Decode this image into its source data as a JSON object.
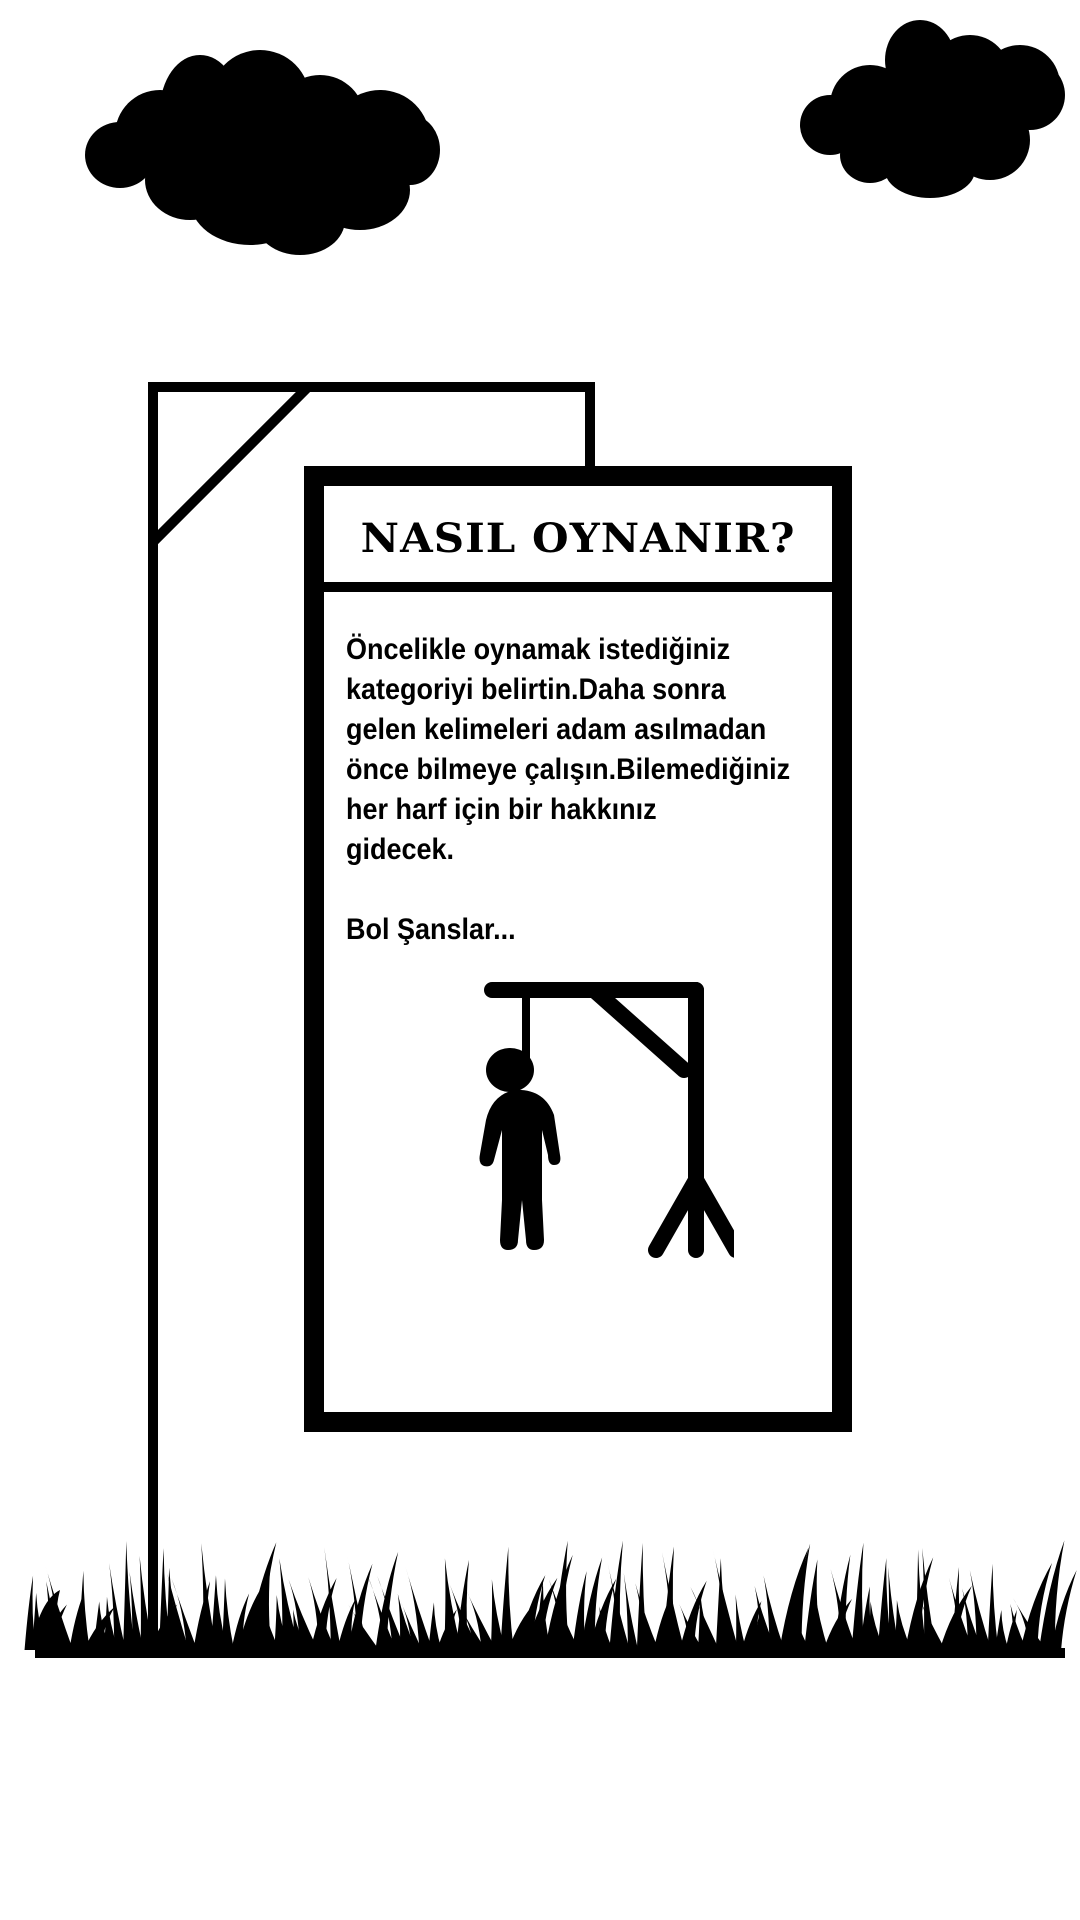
{
  "panel": {
    "title": "NASIL OYNANIR?",
    "instructions": "Öncelikle oynamak istediğiniz\nkategoriyi belirtin.Daha sonra\ngelen kelimeleri adam asılmadan\nönce bilmeye çalışın.Bilemediğiniz\nher harf için bir hakkınız\ngidecek.",
    "closing": "Bol Şanslar..."
  },
  "colors": {
    "ink": "#000000",
    "background": "#ffffff"
  },
  "icons": [
    "cloud-icon",
    "gallows-icon",
    "hangman-icon",
    "grass-icon"
  ]
}
